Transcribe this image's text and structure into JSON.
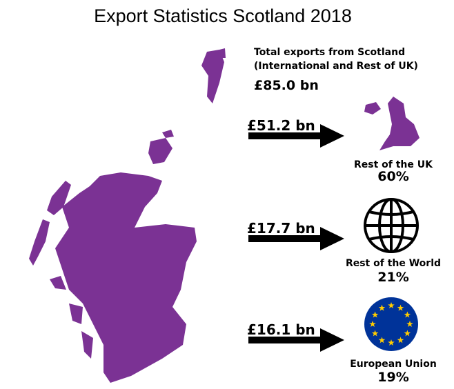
{
  "header": {
    "title": "Export Statistics Scotland 2018"
  },
  "summary": {
    "line1": "Total exports from Scotland",
    "line2": "(International and Rest of UK)",
    "total": "£85.0 bn"
  },
  "destinations": [
    {
      "amount": "£51.2 bn",
      "label": "Rest of the UK",
      "share": "60%"
    },
    {
      "amount": "£17.7 bn",
      "label": "Rest of the World",
      "share": "21%"
    },
    {
      "amount": "£16.1 bn",
      "label": "European Union",
      "share": "19%"
    }
  ]
}
